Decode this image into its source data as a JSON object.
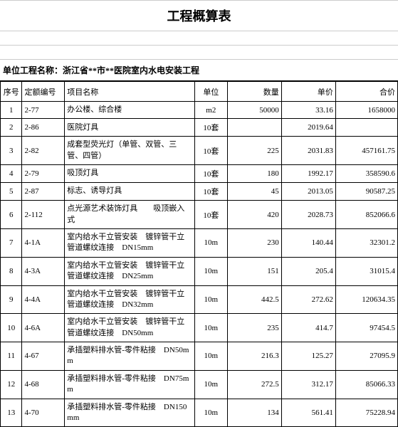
{
  "title": "工程概算表",
  "projectNameLabel": "单位工程名称：浙江省**市**医院室内水电安装工程",
  "columns": [
    "序号",
    "定额编号",
    "项目名称",
    "单位",
    "数量",
    "单价",
    "合价"
  ],
  "rows": [
    {
      "seq": "1",
      "code": "2-77",
      "name": "办公楼、综合楼",
      "unit": "m2",
      "qty": "50000",
      "price": "33.16",
      "total": "1658000"
    },
    {
      "seq": "2",
      "code": "2-86",
      "name": "医院灯具",
      "unit": "10套",
      "qty": "",
      "price": "2019.64",
      "total": ""
    },
    {
      "seq": "3",
      "code": "2-82",
      "name": "成套型荧光灯（单管、双管、三管、四管）",
      "unit": "10套",
      "qty": "225",
      "price": "2031.83",
      "total": "457161.75"
    },
    {
      "seq": "4",
      "code": "2-79",
      "name": "吸顶灯具",
      "unit": "10套",
      "qty": "180",
      "price": "1992.17",
      "total": "358590.6"
    },
    {
      "seq": "5",
      "code": "2-87",
      "name": "标志、诱导灯具",
      "unit": "10套",
      "qty": "45",
      "price": "2013.05",
      "total": "90587.25"
    },
    {
      "seq": "6",
      "code": "2-112",
      "name": "点光源艺术装饰灯具　　吸顶嵌入式",
      "unit": "10套",
      "qty": "420",
      "price": "2028.73",
      "total": "852066.6"
    },
    {
      "seq": "7",
      "code": "4-1A",
      "name": "室内给水干立管安装　镀锌管干立管道螺纹连接　DN15mm",
      "unit": "10m",
      "qty": "230",
      "price": "140.44",
      "total": "32301.2"
    },
    {
      "seq": "8",
      "code": "4-3A",
      "name": "室内给水干立管安装　镀锌管干立管道螺纹连接　DN25mm",
      "unit": "10m",
      "qty": "151",
      "price": "205.4",
      "total": "31015.4"
    },
    {
      "seq": "9",
      "code": "4-4A",
      "name": "室内给水干立管安装　镀锌管干立管道螺纹连接　DN32mm",
      "unit": "10m",
      "qty": "442.5",
      "price": "272.62",
      "total": "120634.35"
    },
    {
      "seq": "10",
      "code": "4-6A",
      "name": "室内给水干立管安装　镀锌管干立管道螺纹连接　DN50mm",
      "unit": "10m",
      "qty": "235",
      "price": "414.7",
      "total": "97454.5"
    },
    {
      "seq": "11",
      "code": "4-67",
      "name": "承插塑料排水管-零件粘接　DN50mm",
      "unit": "10m",
      "qty": "216.3",
      "price": "125.27",
      "total": "27095.9"
    },
    {
      "seq": "12",
      "code": "4-68",
      "name": "承插塑料排水管-零件粘接　DN75mm",
      "unit": "10m",
      "qty": "272.5",
      "price": "312.17",
      "total": "85066.33"
    },
    {
      "seq": "13",
      "code": "4-70",
      "name": "承插塑料排水管-零件粘接　DN150mm",
      "unit": "10m",
      "qty": "134",
      "price": "561.41",
      "total": "75228.94"
    }
  ]
}
